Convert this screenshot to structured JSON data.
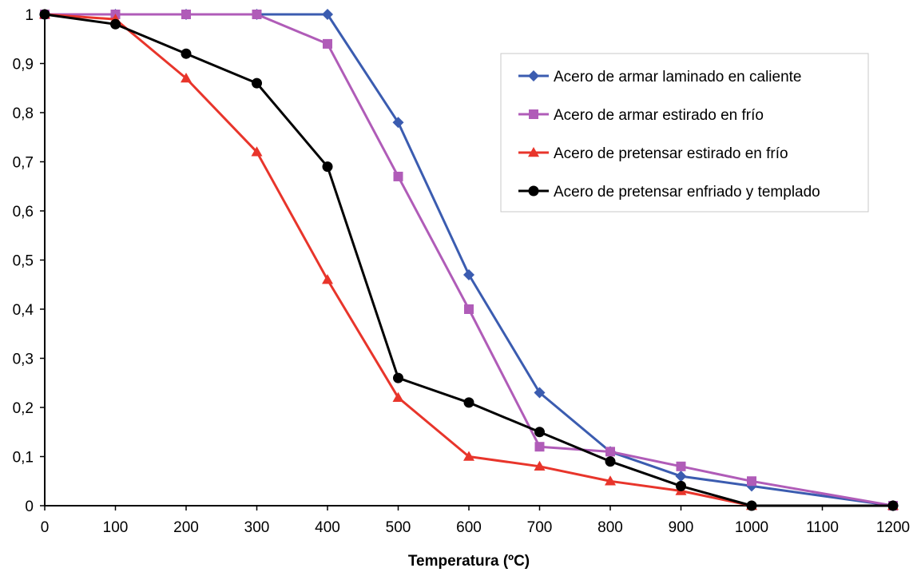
{
  "chart_data": {
    "type": "line",
    "title": "",
    "xlabel": "Temperatura (ºC)",
    "ylabel": "",
    "xlim": [
      0,
      1200
    ],
    "ylim": [
      0,
      1
    ],
    "x_ticks": [
      0,
      100,
      200,
      300,
      400,
      500,
      600,
      700,
      800,
      900,
      1000,
      1100,
      1200
    ],
    "x_tick_labels": [
      "0",
      "100",
      "200",
      "300",
      "400",
      "500",
      "600",
      "700",
      "800",
      "900",
      "1000",
      "1100",
      "1200"
    ],
    "y_ticks": [
      0,
      0.1,
      0.2,
      0.3,
      0.4,
      0.5,
      0.6,
      0.7,
      0.8,
      0.9,
      1
    ],
    "y_tick_labels": [
      "0",
      "0,1",
      "0,2",
      "0,3",
      "0,4",
      "0,5",
      "0,6",
      "0,7",
      "0,8",
      "0,9",
      "1"
    ],
    "grid": false,
    "legend_position": "top-right",
    "series": [
      {
        "name": "Acero de armar laminado en caliente",
        "color": "#3b5cb0",
        "marker": "diamond",
        "x": [
          0,
          100,
          200,
          300,
          400,
          500,
          600,
          700,
          800,
          900,
          1000,
          1200
        ],
        "y": [
          1,
          1,
          1,
          1,
          1,
          0.78,
          0.47,
          0.23,
          0.11,
          0.06,
          0.04,
          0
        ]
      },
      {
        "name": "Acero de armar estirado en frío",
        "color": "#b05cb8",
        "marker": "square",
        "x": [
          0,
          100,
          200,
          300,
          400,
          500,
          600,
          700,
          800,
          900,
          1000,
          1200
        ],
        "y": [
          1,
          1,
          1,
          1,
          0.94,
          0.67,
          0.4,
          0.12,
          0.11,
          0.08,
          0.05,
          0
        ]
      },
      {
        "name": "Acero de pretensar estirado en frío",
        "color": "#e8352b",
        "marker": "triangle",
        "x": [
          0,
          100,
          200,
          300,
          400,
          500,
          600,
          700,
          800,
          900,
          1000,
          1200
        ],
        "y": [
          1,
          0.99,
          0.87,
          0.72,
          0.46,
          0.22,
          0.1,
          0.08,
          0.05,
          0.03,
          0,
          0
        ]
      },
      {
        "name": "Acero de pretensar enfriado y templado",
        "color": "#000000",
        "marker": "circle",
        "x": [
          0,
          100,
          200,
          300,
          400,
          500,
          600,
          700,
          800,
          900,
          1000,
          1200
        ],
        "y": [
          1,
          0.98,
          0.92,
          0.86,
          0.69,
          0.26,
          0.21,
          0.15,
          0.09,
          0.04,
          0,
          0
        ]
      }
    ]
  }
}
